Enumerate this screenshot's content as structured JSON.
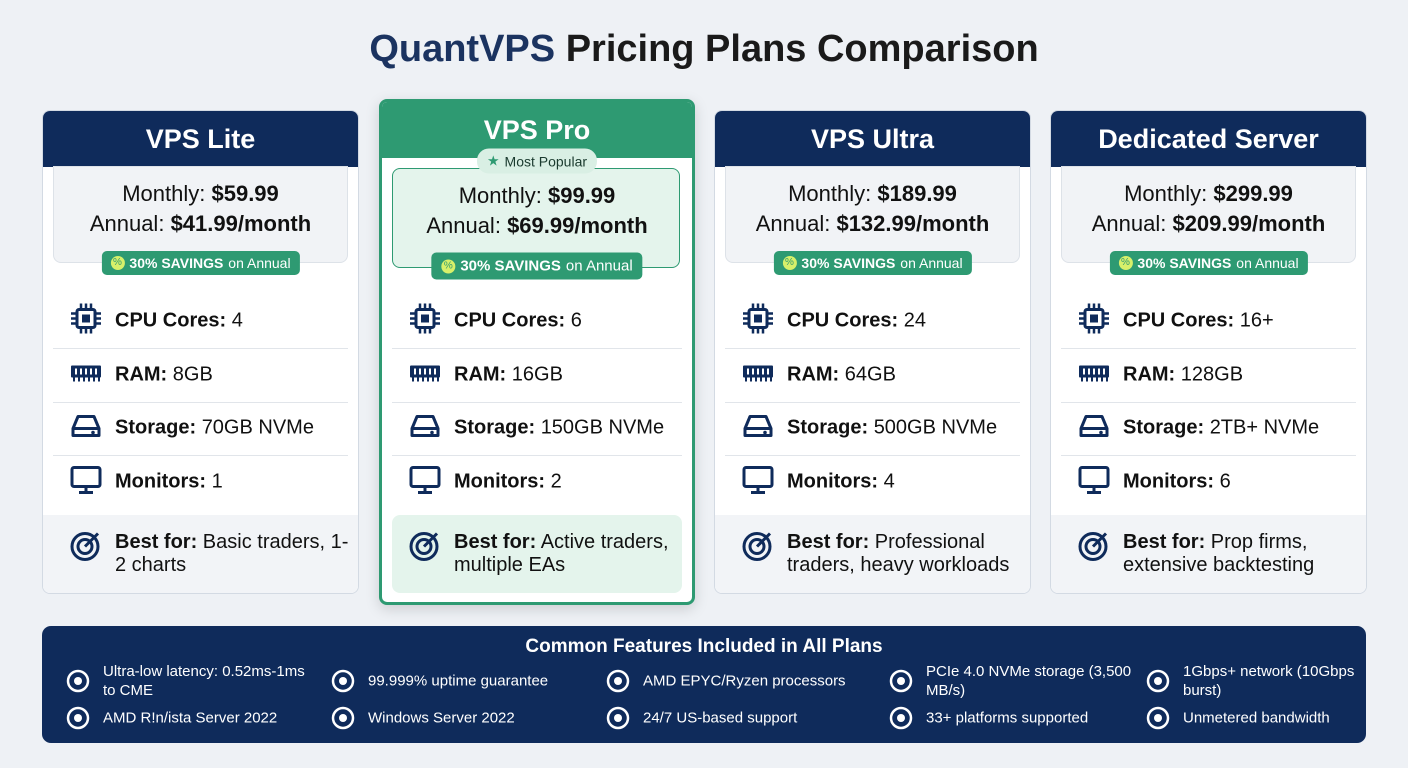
{
  "title_accent": "QuantVPS",
  "title_rest": "Pricing Plans Comparison",
  "plans": [
    {
      "name": "VPS Lite",
      "monthly_label": "Monthly:",
      "monthly": "$59.99",
      "annual_label": "Annual:",
      "annual": "$41.99/month",
      "savings": "30% SAVINGS",
      "savings_note": "on Annual",
      "features": [
        {
          "label": "CPU Cores:",
          "value": "4"
        },
        {
          "label": "RAM:",
          "value": "8GB"
        },
        {
          "label": "Storage:",
          "value": "70GB NVMe"
        },
        {
          "label": "Monitors:",
          "value": "1"
        }
      ],
      "best_label": "Best for:",
      "best": "Basic traders, 1-2 charts"
    },
    {
      "name": "VPS Pro",
      "badge": "Most Popular",
      "monthly_label": "Monthly:",
      "monthly": "$99.99",
      "annual_label": "Annual:",
      "annual": "$69.99/month",
      "savings": "30% SAVINGS",
      "savings_note": "on Annual",
      "features": [
        {
          "label": "CPU Cores:",
          "value": "6"
        },
        {
          "label": "RAM:",
          "value": "16GB"
        },
        {
          "label": "Storage:",
          "value": "150GB NVMe"
        },
        {
          "label": "Monitors:",
          "value": "2"
        }
      ],
      "best_label": "Best for:",
      "best": "Active traders, multiple EAs"
    },
    {
      "name": "VPS Ultra",
      "monthly_label": "Monthly:",
      "monthly": "$189.99",
      "annual_label": "Annual:",
      "annual": "$132.99/month",
      "savings": "30% SAVINGS",
      "savings_note": "on Annual",
      "features": [
        {
          "label": "CPU Cores:",
          "value": "24"
        },
        {
          "label": "RAM:",
          "value": "64GB"
        },
        {
          "label": "Storage:",
          "value": "500GB NVMe"
        },
        {
          "label": "Monitors:",
          "value": "4"
        }
      ],
      "best_label": "Best for:",
      "best": "Professional traders, heavy workloads"
    },
    {
      "name": "Dedicated Server",
      "monthly_label": "Monthly:",
      "monthly": "$299.99",
      "annual_label": "Annual:",
      "annual": "$209.99/month",
      "savings": "30% SAVINGS",
      "savings_note": "on Annual",
      "features": [
        {
          "label": "CPU Cores:",
          "value": "16+"
        },
        {
          "label": "RAM:",
          "value": "128GB"
        },
        {
          "label": "Storage:",
          "value": "2TB+ NVMe"
        },
        {
          "label": "Monitors:",
          "value": "6"
        }
      ],
      "best_label": "Best for:",
      "best": "Prop firms, extensive backtesting"
    }
  ],
  "common": {
    "title": "Common Features Included in All Plans",
    "items": [
      "Ultra-low latency: 0.52ms-1ms to CME",
      "99.999% uptime guarantee",
      "AMD EPYC/Ryzen processors",
      "PCIe 4.0 NVMe storage (3,500 MB/s)",
      "1Gbps+ network (10Gbps burst)",
      "AMD R!n/ista Server 2022",
      "Windows Server 2022",
      "24/7 US-based support",
      "33+ platforms supported",
      "Unmetered bandwidth"
    ]
  }
}
